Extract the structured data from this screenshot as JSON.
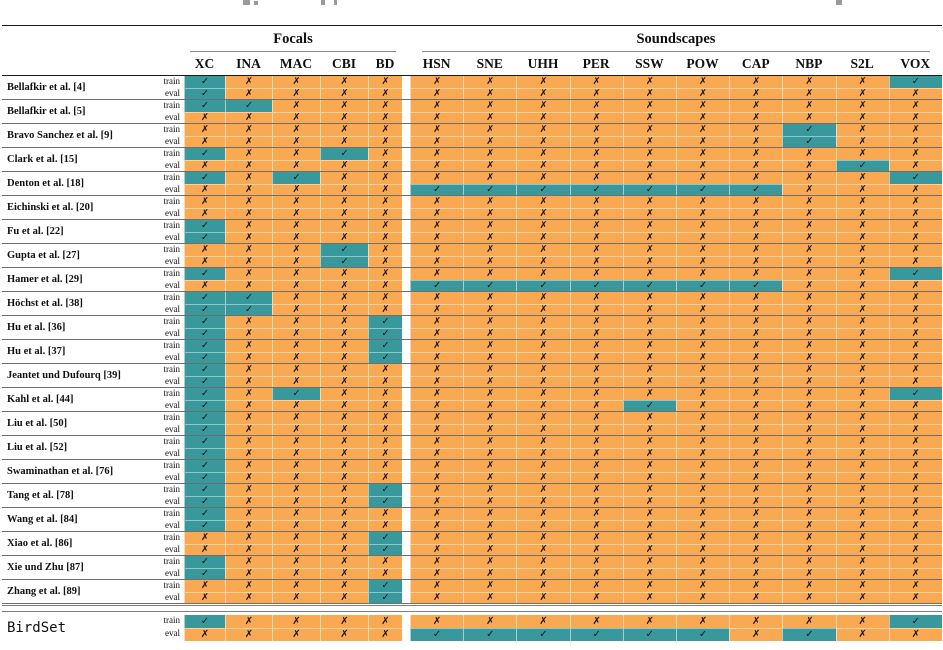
{
  "table": {
    "groups": [
      {
        "label": "Focals",
        "span": 5
      },
      {
        "label": "Soundscapes",
        "span": 10
      }
    ],
    "columns": [
      "XC",
      "INA",
      "MAC",
      "CBI",
      "BD",
      "HSN",
      "SNE",
      "UHH",
      "PER",
      "SSW",
      "POW",
      "CAP",
      "NBP",
      "S2L",
      "VOX"
    ],
    "row_sublabels": {
      "train": "train",
      "eval": "eval"
    },
    "marks": {
      "checked": "✓",
      "unchecked": "✗"
    },
    "colors": {
      "checked_bg": "#38989c",
      "unchecked_bg": "#f9a952",
      "separator": "#6f6f6f",
      "rule": "#1a1a1a"
    },
    "rows": [
      {
        "name": "Bellafkir et al. [4]",
        "train": [
          1,
          0,
          0,
          0,
          0,
          0,
          0,
          0,
          0,
          0,
          0,
          0,
          0,
          0,
          1
        ],
        "eval": [
          1,
          0,
          0,
          0,
          0,
          0,
          0,
          0,
          0,
          0,
          0,
          0,
          0,
          0,
          0
        ]
      },
      {
        "name": "Bellafkir et al. [5]",
        "train": [
          1,
          1,
          0,
          0,
          0,
          0,
          0,
          0,
          0,
          0,
          0,
          0,
          0,
          0,
          0
        ],
        "eval": [
          0,
          0,
          0,
          0,
          0,
          0,
          0,
          0,
          0,
          0,
          0,
          0,
          0,
          0,
          0
        ]
      },
      {
        "name": "Bravo Sanchez et al. [9]",
        "train": [
          0,
          0,
          0,
          0,
          0,
          0,
          0,
          0,
          0,
          0,
          0,
          0,
          1,
          0,
          0
        ],
        "eval": [
          0,
          0,
          0,
          0,
          0,
          0,
          0,
          0,
          0,
          0,
          0,
          0,
          1,
          0,
          0
        ]
      },
      {
        "name": "Clark et al. [15]",
        "train": [
          1,
          0,
          0,
          1,
          0,
          0,
          0,
          0,
          0,
          0,
          0,
          0,
          0,
          0,
          0
        ],
        "eval": [
          0,
          0,
          0,
          0,
          0,
          0,
          0,
          0,
          0,
          0,
          0,
          0,
          0,
          1,
          0
        ]
      },
      {
        "name": "Denton et al. [18]",
        "train": [
          1,
          0,
          1,
          0,
          0,
          0,
          0,
          0,
          0,
          0,
          0,
          0,
          0,
          0,
          1
        ],
        "eval": [
          0,
          0,
          0,
          0,
          0,
          1,
          1,
          1,
          1,
          1,
          1,
          1,
          0,
          0,
          0
        ]
      },
      {
        "name": "Eichinski et al. [20]",
        "train": [
          0,
          0,
          0,
          0,
          0,
          0,
          0,
          0,
          0,
          0,
          0,
          0,
          0,
          0,
          0
        ],
        "eval": [
          0,
          0,
          0,
          0,
          0,
          0,
          0,
          0,
          0,
          0,
          0,
          0,
          0,
          0,
          0
        ]
      },
      {
        "name": "Fu et al. [22]",
        "train": [
          1,
          0,
          0,
          0,
          0,
          0,
          0,
          0,
          0,
          0,
          0,
          0,
          0,
          0,
          0
        ],
        "eval": [
          1,
          0,
          0,
          0,
          0,
          0,
          0,
          0,
          0,
          0,
          0,
          0,
          0,
          0,
          0
        ]
      },
      {
        "name": "Gupta et al. [27]",
        "train": [
          0,
          0,
          0,
          1,
          0,
          0,
          0,
          0,
          0,
          0,
          0,
          0,
          0,
          0,
          0
        ],
        "eval": [
          0,
          0,
          0,
          1,
          0,
          0,
          0,
          0,
          0,
          0,
          0,
          0,
          0,
          0,
          0
        ]
      },
      {
        "name": "Hamer et al. [29]",
        "train": [
          1,
          0,
          0,
          0,
          0,
          0,
          0,
          0,
          0,
          0,
          0,
          0,
          0,
          0,
          1
        ],
        "eval": [
          0,
          0,
          0,
          0,
          0,
          1,
          1,
          1,
          1,
          1,
          1,
          1,
          0,
          0,
          0
        ]
      },
      {
        "name": "Höchst et al. [38]",
        "train": [
          1,
          1,
          0,
          0,
          0,
          0,
          0,
          0,
          0,
          0,
          0,
          0,
          0,
          0,
          0
        ],
        "eval": [
          1,
          1,
          0,
          0,
          0,
          0,
          0,
          0,
          0,
          0,
          0,
          0,
          0,
          0,
          0
        ]
      },
      {
        "name": "Hu et al. [36]",
        "train": [
          1,
          0,
          0,
          0,
          1,
          0,
          0,
          0,
          0,
          0,
          0,
          0,
          0,
          0,
          0
        ],
        "eval": [
          1,
          0,
          0,
          0,
          1,
          0,
          0,
          0,
          0,
          0,
          0,
          0,
          0,
          0,
          0
        ]
      },
      {
        "name": "Hu et al. [37]",
        "train": [
          1,
          0,
          0,
          0,
          1,
          0,
          0,
          0,
          0,
          0,
          0,
          0,
          0,
          0,
          0
        ],
        "eval": [
          1,
          0,
          0,
          0,
          1,
          0,
          0,
          0,
          0,
          0,
          0,
          0,
          0,
          0,
          0
        ]
      },
      {
        "name": "Jeantet und Dufourq [39]",
        "train": [
          1,
          0,
          0,
          0,
          0,
          0,
          0,
          0,
          0,
          0,
          0,
          0,
          0,
          0,
          0
        ],
        "eval": [
          1,
          0,
          0,
          0,
          0,
          0,
          0,
          0,
          0,
          0,
          0,
          0,
          0,
          0,
          0
        ]
      },
      {
        "name": "Kahl et al. [44]",
        "train": [
          1,
          0,
          1,
          0,
          0,
          0,
          0,
          0,
          0,
          0,
          0,
          0,
          0,
          0,
          1
        ],
        "eval": [
          1,
          0,
          0,
          0,
          0,
          0,
          0,
          0,
          0,
          1,
          0,
          0,
          0,
          0,
          0
        ]
      },
      {
        "name": "Liu et al. [50]",
        "train": [
          1,
          0,
          0,
          0,
          0,
          0,
          0,
          0,
          0,
          0,
          0,
          0,
          0,
          0,
          0
        ],
        "eval": [
          1,
          0,
          0,
          0,
          0,
          0,
          0,
          0,
          0,
          0,
          0,
          0,
          0,
          0,
          0
        ]
      },
      {
        "name": "Liu et al. [52]",
        "train": [
          1,
          0,
          0,
          0,
          0,
          0,
          0,
          0,
          0,
          0,
          0,
          0,
          0,
          0,
          0
        ],
        "eval": [
          1,
          0,
          0,
          0,
          0,
          0,
          0,
          0,
          0,
          0,
          0,
          0,
          0,
          0,
          0
        ]
      },
      {
        "name": "Swaminathan et al. [76]",
        "train": [
          1,
          0,
          0,
          0,
          0,
          0,
          0,
          0,
          0,
          0,
          0,
          0,
          0,
          0,
          0
        ],
        "eval": [
          1,
          0,
          0,
          0,
          0,
          0,
          0,
          0,
          0,
          0,
          0,
          0,
          0,
          0,
          0
        ]
      },
      {
        "name": "Tang et al. [78]",
        "train": [
          1,
          0,
          0,
          0,
          1,
          0,
          0,
          0,
          0,
          0,
          0,
          0,
          0,
          0,
          0
        ],
        "eval": [
          1,
          0,
          0,
          0,
          1,
          0,
          0,
          0,
          0,
          0,
          0,
          0,
          0,
          0,
          0
        ]
      },
      {
        "name": "Wang et al. [84]",
        "train": [
          1,
          0,
          0,
          0,
          0,
          0,
          0,
          0,
          0,
          0,
          0,
          0,
          0,
          0,
          0
        ],
        "eval": [
          1,
          0,
          0,
          0,
          0,
          0,
          0,
          0,
          0,
          0,
          0,
          0,
          0,
          0,
          0
        ]
      },
      {
        "name": "Xiao et al. [86]",
        "train": [
          0,
          0,
          0,
          0,
          1,
          0,
          0,
          0,
          0,
          0,
          0,
          0,
          0,
          0,
          0
        ],
        "eval": [
          0,
          0,
          0,
          0,
          1,
          0,
          0,
          0,
          0,
          0,
          0,
          0,
          0,
          0,
          0
        ]
      },
      {
        "name": "Xie und Zhu [87]",
        "train": [
          1,
          0,
          0,
          0,
          0,
          0,
          0,
          0,
          0,
          0,
          0,
          0,
          0,
          0,
          0
        ],
        "eval": [
          1,
          0,
          0,
          0,
          0,
          0,
          0,
          0,
          0,
          0,
          0,
          0,
          0,
          0,
          0
        ]
      },
      {
        "name": "Zhang et al. [89]",
        "train": [
          0,
          0,
          0,
          0,
          1,
          0,
          0,
          0,
          0,
          0,
          0,
          0,
          0,
          0,
          0
        ],
        "eval": [
          0,
          0,
          0,
          0,
          1,
          0,
          0,
          0,
          0,
          0,
          0,
          0,
          0,
          0,
          0
        ]
      }
    ],
    "footer_row": {
      "name": "BirdSet",
      "mono": true,
      "train": [
        1,
        0,
        0,
        0,
        0,
        0,
        0,
        0,
        0,
        0,
        0,
        0,
        0,
        0,
        1
      ],
      "eval": [
        0,
        0,
        0,
        0,
        0,
        1,
        1,
        1,
        1,
        1,
        1,
        0,
        1,
        0,
        0
      ]
    }
  }
}
